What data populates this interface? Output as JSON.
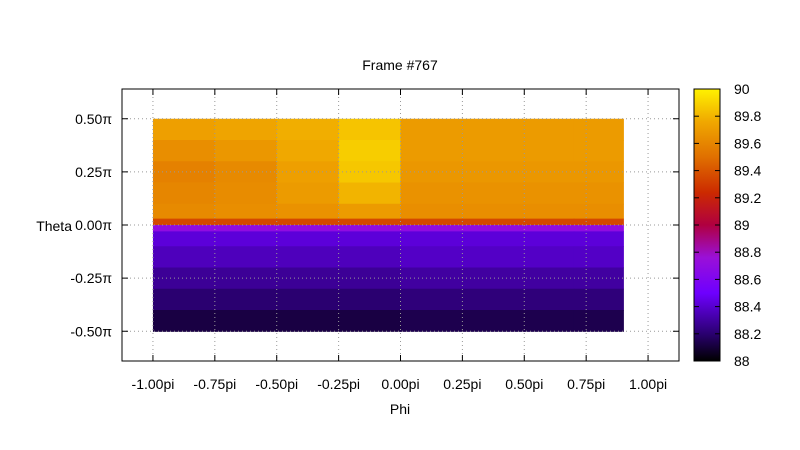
{
  "chart_data": {
    "type": "heatmap",
    "title": "Frame #767",
    "xlabel": "Phi",
    "ylabel": "Theta",
    "xlim": [
      -1.125,
      1.125
    ],
    "ylim": [
      -0.64,
      0.64
    ],
    "x_ticks": [
      {
        "value": -1.0,
        "label": "-1.00pi"
      },
      {
        "value": -0.75,
        "label": "-0.75pi"
      },
      {
        "value": -0.5,
        "label": "-0.50pi"
      },
      {
        "value": -0.25,
        "label": "-0.25pi"
      },
      {
        "value": 0.0,
        "label": "0.00pi"
      },
      {
        "value": 0.25,
        "label": "0.25pi"
      },
      {
        "value": 0.5,
        "label": "0.50pi"
      },
      {
        "value": 0.75,
        "label": "0.75pi"
      },
      {
        "value": 1.0,
        "label": "1.00pi"
      }
    ],
    "y_ticks": [
      {
        "value": 0.5,
        "label": "0.50π"
      },
      {
        "value": 0.25,
        "label": "0.25π"
      },
      {
        "value": 0.0,
        "label": "0.00π"
      },
      {
        "value": -0.25,
        "label": "-0.25π"
      },
      {
        "value": -0.5,
        "label": "-0.50π"
      }
    ],
    "grid": true,
    "data_extent": {
      "x": [
        -1.0,
        0.9
      ],
      "y": [
        -0.5,
        0.5
      ]
    },
    "cells": {
      "x_centers": [
        -0.875,
        -0.625,
        -0.375,
        -0.125,
        0.125,
        0.375,
        0.625,
        0.775
      ],
      "y_centers": [
        0.45,
        0.35,
        0.25,
        0.15,
        0.05,
        0.01,
        -0.01,
        -0.05,
        -0.15,
        -0.25,
        -0.35,
        -0.45
      ],
      "values": [
        [
          89.72,
          89.74,
          89.78,
          89.85,
          89.7,
          89.7,
          89.7,
          89.7
        ],
        [
          89.64,
          89.68,
          89.76,
          89.88,
          89.7,
          89.7,
          89.7,
          89.7
        ],
        [
          89.58,
          89.62,
          89.72,
          89.86,
          89.68,
          89.68,
          89.68,
          89.68
        ],
        [
          89.6,
          89.63,
          89.7,
          89.8,
          89.66,
          89.66,
          89.66,
          89.66
        ],
        [
          89.62,
          89.64,
          89.66,
          89.7,
          89.64,
          89.64,
          89.64,
          89.64
        ],
        [
          89.35,
          89.35,
          89.35,
          89.35,
          89.35,
          89.35,
          89.35,
          89.35
        ],
        [
          88.7,
          88.7,
          88.7,
          88.7,
          88.7,
          88.7,
          88.7,
          88.7
        ],
        [
          88.42,
          88.42,
          88.42,
          88.42,
          88.42,
          88.42,
          88.42,
          88.42
        ],
        [
          88.36,
          88.36,
          88.36,
          88.36,
          88.38,
          88.38,
          88.38,
          88.38
        ],
        [
          88.28,
          88.28,
          88.28,
          88.28,
          88.3,
          88.3,
          88.3,
          88.3
        ],
        [
          88.2,
          88.2,
          88.2,
          88.2,
          88.22,
          88.22,
          88.22,
          88.22
        ],
        [
          88.12,
          88.12,
          88.12,
          88.12,
          88.14,
          88.14,
          88.14,
          88.14
        ]
      ]
    },
    "colorbar": {
      "range": [
        88,
        90
      ],
      "ticks": [
        {
          "value": 90,
          "label": "90"
        },
        {
          "value": 89.8,
          "label": "89.8"
        },
        {
          "value": 89.6,
          "label": "89.6"
        },
        {
          "value": 89.4,
          "label": "89.4"
        },
        {
          "value": 89.2,
          "label": "89.2"
        },
        {
          "value": 89.0,
          "label": "89"
        },
        {
          "value": 88.8,
          "label": "88.8"
        },
        {
          "value": 88.6,
          "label": "88.6"
        },
        {
          "value": 88.4,
          "label": "88.4"
        },
        {
          "value": 88.2,
          "label": "88.2"
        },
        {
          "value": 88.0,
          "label": "88"
        }
      ],
      "palette": "black-blue-purple-red-orange-yellow"
    }
  }
}
